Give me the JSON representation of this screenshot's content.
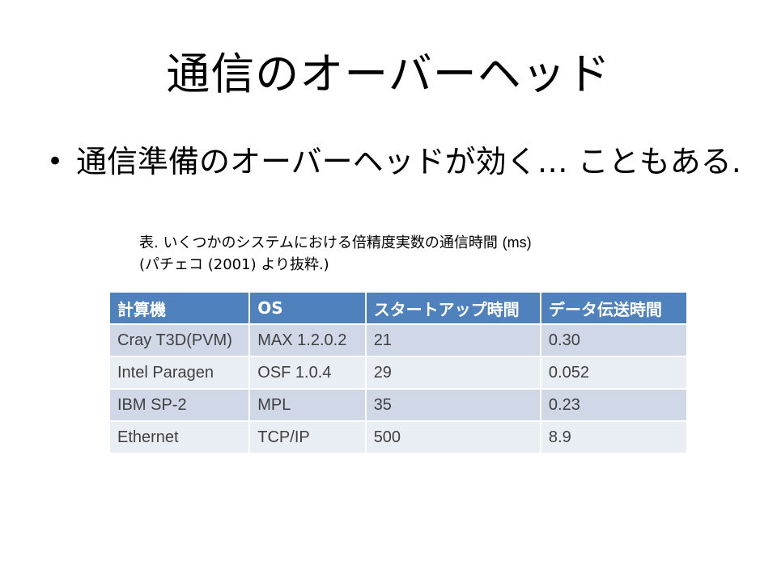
{
  "slide": {
    "title": "通信のオーバーヘッド",
    "bullet": "通信準備のオーバーヘッドが効く… こともある."
  },
  "table_caption": {
    "line1_main": "表. いくつかのシステムにおける倍精度実数の通信時間",
    "line1_unit": "(ms)",
    "line2": "(パチェコ (2001) より抜粋.)"
  },
  "table": {
    "headers": [
      "計算機",
      "OS",
      "スタートアップ時間",
      "データ伝送時間"
    ],
    "rows": [
      [
        "Cray T3D(PVM)",
        "MAX 1.2.0.2",
        "21",
        "0.30"
      ],
      [
        "Intel Paragen",
        "OSF 1.0.4",
        "29",
        "0.052"
      ],
      [
        "IBM SP-2",
        "MPL",
        "35",
        "0.23"
      ],
      [
        "Ethernet",
        "TCP/IP",
        "500",
        "8.9"
      ]
    ]
  },
  "colors": {
    "header_bg": "#4f81bd",
    "row_odd_bg": "#d0d8e8",
    "row_even_bg": "#e9edf4"
  }
}
